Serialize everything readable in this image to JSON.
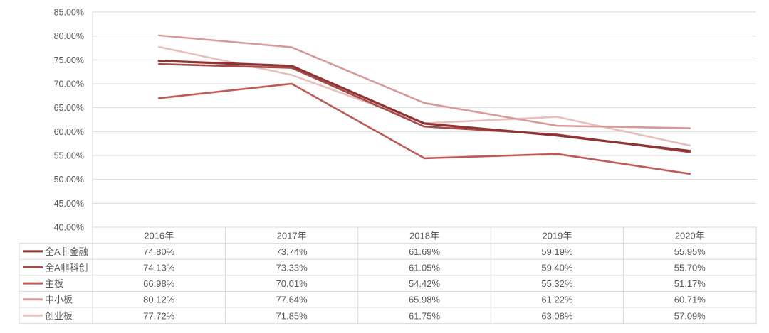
{
  "chart_data": {
    "type": "line",
    "categories": [
      "2016年",
      "2017年",
      "2018年",
      "2019年",
      "2020年"
    ],
    "ylim": [
      40,
      85
    ],
    "yticks": [
      40,
      45,
      50,
      55,
      60,
      65,
      70,
      75,
      80,
      85
    ],
    "ytick_labels": [
      "40.00%",
      "45.00%",
      "50.00%",
      "55.00%",
      "60.00%",
      "65.00%",
      "70.00%",
      "75.00%",
      "80.00%",
      "85.00%"
    ],
    "grid": true,
    "legend": "data-table",
    "series": [
      {
        "name": "全A非金融",
        "color": "#8b3534",
        "values": [
          74.8,
          73.74,
          61.69,
          59.19,
          55.95
        ],
        "labels": [
          "74.80%",
          "73.74%",
          "61.69%",
          "59.19%",
          "55.95%"
        ]
      },
      {
        "name": "全A非科创",
        "color": "#a84a48",
        "values": [
          74.13,
          73.33,
          61.05,
          59.4,
          55.7
        ],
        "labels": [
          "74.13%",
          "73.33%",
          "61.05%",
          "59.40%",
          "55.70%"
        ]
      },
      {
        "name": "主板",
        "color": "#c05a57",
        "values": [
          66.98,
          70.01,
          54.42,
          55.32,
          51.17
        ],
        "labels": [
          "66.98%",
          "70.01%",
          "54.42%",
          "55.32%",
          "51.17%"
        ]
      },
      {
        "name": "中小板",
        "color": "#d79a98",
        "values": [
          80.12,
          77.64,
          65.98,
          61.22,
          60.71
        ],
        "labels": [
          "80.12%",
          "77.64%",
          "65.98%",
          "61.22%",
          "60.71%"
        ]
      },
      {
        "name": "创业板",
        "color": "#e8bfbd",
        "values": [
          77.72,
          71.85,
          61.75,
          63.08,
          57.09
        ],
        "labels": [
          "77.72%",
          "71.85%",
          "61.75%",
          "63.08%",
          "57.09%"
        ]
      }
    ]
  }
}
